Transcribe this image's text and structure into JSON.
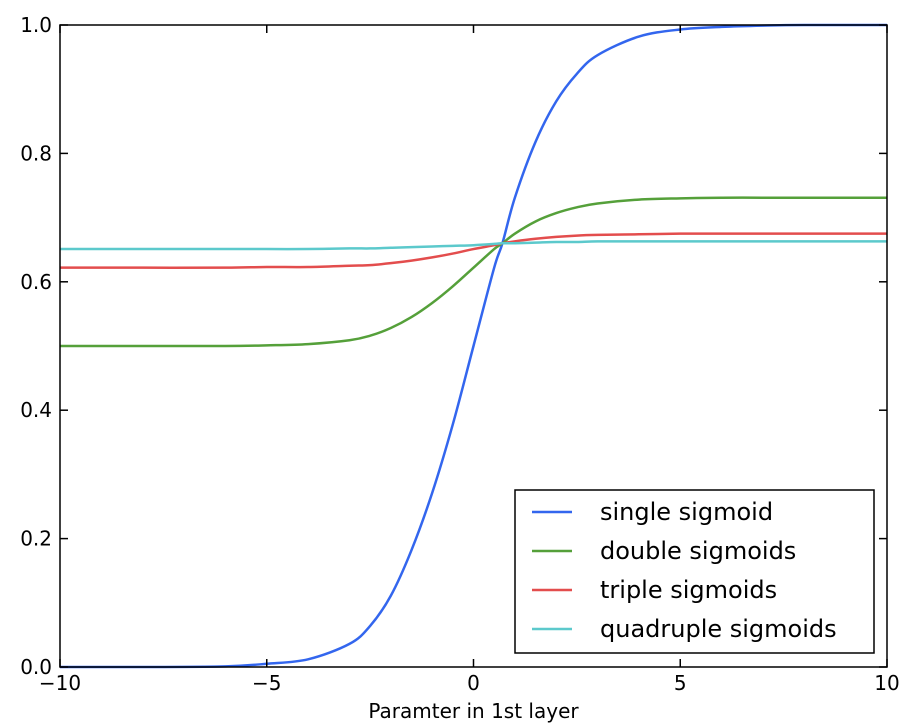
{
  "chart_data": {
    "type": "line",
    "title": "",
    "xlabel": "Paramter in 1st layer",
    "ylabel": "",
    "xlim": [
      -10,
      10
    ],
    "ylim": [
      0.0,
      1.0
    ],
    "xticks": [
      -10,
      -5,
      0,
      5,
      10
    ],
    "yticks": [
      0.0,
      0.2,
      0.4,
      0.6,
      0.8,
      1.0
    ],
    "xtick_labels": [
      "−10",
      "−5",
      "0",
      "5",
      "10"
    ],
    "ytick_labels": [
      "0.0",
      "0.2",
      "0.4",
      "0.6",
      "0.8",
      "1.0"
    ],
    "grid": false,
    "legend_position": "bottom-right",
    "x": [
      -10,
      -8,
      -6,
      -5,
      -4,
      -3,
      -2.5,
      -2,
      -1.5,
      -1,
      -0.5,
      0,
      0.5,
      0.7,
      1,
      1.5,
      2,
      2.5,
      3,
      4,
      5,
      6,
      7,
      8,
      10
    ],
    "series": [
      {
        "name": "single sigmoid",
        "color": "#3366ee",
        "values": [
          0.0,
          0.0,
          0.001,
          0.005,
          0.012,
          0.036,
          0.064,
          0.111,
          0.182,
          0.271,
          0.378,
          0.5,
          0.622,
          0.66,
          0.731,
          0.818,
          0.881,
          0.924,
          0.953,
          0.982,
          0.993,
          0.997,
          0.999,
          1.0,
          1.0
        ]
      },
      {
        "name": "double sigmoids",
        "color": "#55a03a",
        "values": [
          0.5,
          0.5,
          0.5,
          0.501,
          0.503,
          0.509,
          0.516,
          0.528,
          0.545,
          0.567,
          0.593,
          0.622,
          0.651,
          0.66,
          0.675,
          0.694,
          0.707,
          0.716,
          0.722,
          0.728,
          0.73,
          0.731,
          0.731,
          0.731,
          0.731
        ]
      },
      {
        "name": "triple sigmoids",
        "color": "#e34d4d",
        "values": [
          0.622,
          0.622,
          0.622,
          0.623,
          0.623,
          0.625,
          0.626,
          0.629,
          0.633,
          0.638,
          0.644,
          0.651,
          0.657,
          0.66,
          0.663,
          0.667,
          0.67,
          0.672,
          0.673,
          0.674,
          0.675,
          0.675,
          0.675,
          0.675,
          0.675
        ]
      },
      {
        "name": "quadruple sigmoids",
        "color": "#5cc9cc",
        "values": [
          0.651,
          0.651,
          0.651,
          0.651,
          0.651,
          0.652,
          0.652,
          0.653,
          0.654,
          0.655,
          0.656,
          0.657,
          0.659,
          0.66,
          0.66,
          0.661,
          0.662,
          0.662,
          0.663,
          0.663,
          0.663,
          0.663,
          0.663,
          0.663,
          0.663
        ]
      }
    ]
  }
}
